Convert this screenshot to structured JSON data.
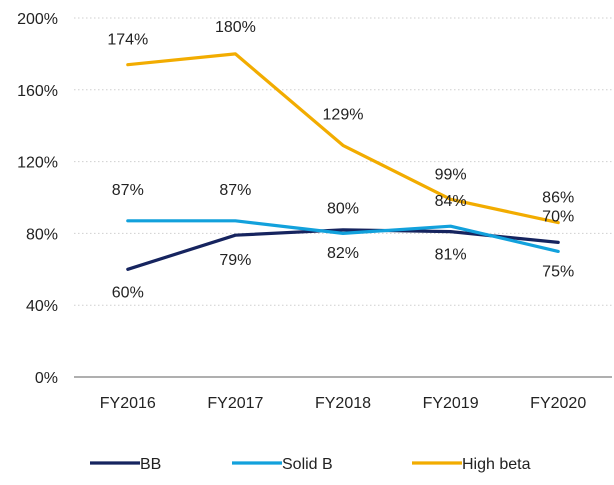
{
  "chart_data": {
    "type": "line",
    "title": "",
    "xlabel": "",
    "ylabel": "",
    "categories": [
      "FY2016",
      "FY2017",
      "FY2018",
      "FY2019",
      "FY2020"
    ],
    "ylim": [
      0,
      200
    ],
    "y_ticks": [
      {
        "value": 0,
        "label": "0%"
      },
      {
        "value": 40,
        "label": "40%"
      },
      {
        "value": 80,
        "label": "80%"
      },
      {
        "value": 120,
        "label": "120%"
      },
      {
        "value": 160,
        "label": "160%"
      },
      {
        "value": 200,
        "label": "200%"
      }
    ],
    "grid": "horizontal",
    "legend_position": "bottom",
    "series": [
      {
        "name": "BB",
        "color": "#16245f",
        "values": [
          60,
          79,
          82,
          81,
          75
        ],
        "labels": [
          "60%",
          "79%",
          "82%",
          "81%",
          "75%"
        ]
      },
      {
        "name": "Solid B",
        "color": "#12a1dc",
        "values": [
          87,
          87,
          80,
          84,
          70
        ],
        "labels": [
          "87%",
          "87%",
          "80%",
          "84%",
          "70%"
        ]
      },
      {
        "name": "High beta",
        "color": "#f2ac00",
        "values": [
          174,
          180,
          129,
          99,
          86
        ],
        "labels": [
          "174%",
          "180%",
          "129%",
          "99%",
          "86%"
        ]
      }
    ]
  }
}
